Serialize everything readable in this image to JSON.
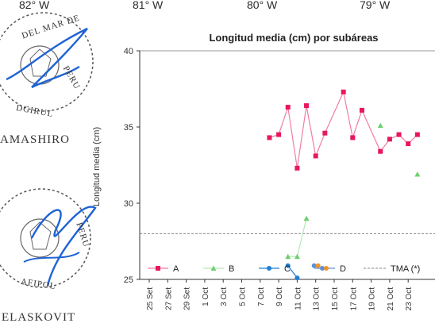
{
  "longitudes": [
    "82° W",
    "81° W",
    "80° W",
    "79° W"
  ],
  "stamp": {
    "seal_text_top": "DEL MAR DE",
    "seal_text_right": "PERU",
    "seal_text_bottom": "DGIRUL",
    "name_1": "AMASHIRO",
    "seal2_text_right": "PERU",
    "seal2_text_bottom": "AFIPOL",
    "name_2": "ELASKOVIT"
  },
  "colors": {
    "A": "#e8175d",
    "A_line": "#f07ea0",
    "B": "#6fcf6f",
    "B_line": "#b7e7b7",
    "C": "#1f7fd6",
    "D_left": "#5b8fd9",
    "D_right": "#f0932b",
    "tma": "#888888",
    "ink": "#1e63d6"
  },
  "chart_data": {
    "type": "line",
    "title": "Longitud media (cm) por subáreas",
    "ylabel": "Longitud media (cm)",
    "xlabel": "",
    "ylim": [
      25,
      40
    ],
    "yticks": [
      25,
      30,
      35,
      40
    ],
    "x_categories": [
      "25 Set",
      "27 Set",
      "29 Set",
      "1 Oct",
      "3 Oct",
      "5 Oct",
      "7 Oct",
      "9 Oct",
      "11 Oct",
      "13 Oct",
      "15 Oct",
      "17 Oct",
      "19 Oct",
      "21 Oct",
      "23 Oct"
    ],
    "series": [
      {
        "name": "A",
        "marker": "square",
        "points": [
          [
            "8 Oct",
            34.3
          ],
          [
            "9 Oct",
            34.5
          ],
          [
            "10 Oct",
            36.3
          ],
          [
            "11 Oct",
            32.3
          ],
          [
            "12 Oct",
            36.4
          ],
          [
            "13 Oct",
            33.1
          ],
          [
            "14 Oct",
            34.6
          ],
          [
            "16 Oct",
            37.3
          ],
          [
            "17 Oct",
            34.3
          ],
          [
            "18 Oct",
            36.1
          ],
          [
            "20 Oct",
            33.4
          ],
          [
            "21 Oct",
            34.2
          ],
          [
            "22 Oct",
            34.5
          ],
          [
            "23 Oct",
            33.9
          ],
          [
            "24 Oct",
            34.5
          ]
        ]
      },
      {
        "name": "B",
        "marker": "triangle",
        "points": [
          [
            "10 Oct",
            26.5
          ],
          [
            "11 Oct",
            26.5
          ],
          [
            "12 Oct",
            29.0
          ],
          [
            "20 Oct",
            35.1
          ],
          [
            "24 Oct",
            31.9
          ]
        ]
      },
      {
        "name": "C",
        "marker": "circle",
        "points": [
          [
            "10 Oct",
            25.9
          ],
          [
            "11 Oct",
            25.1
          ]
        ]
      },
      {
        "name": "D",
        "marker": "circle",
        "points": [
          [
            "13 Oct",
            25.9
          ]
        ]
      }
    ],
    "reference_line": {
      "name": "TMA (*)",
      "y": 28
    },
    "legend": [
      "A",
      "B",
      "C",
      "D",
      "TMA (*)"
    ],
    "legend_position": "bottom-inside",
    "grid": false
  }
}
